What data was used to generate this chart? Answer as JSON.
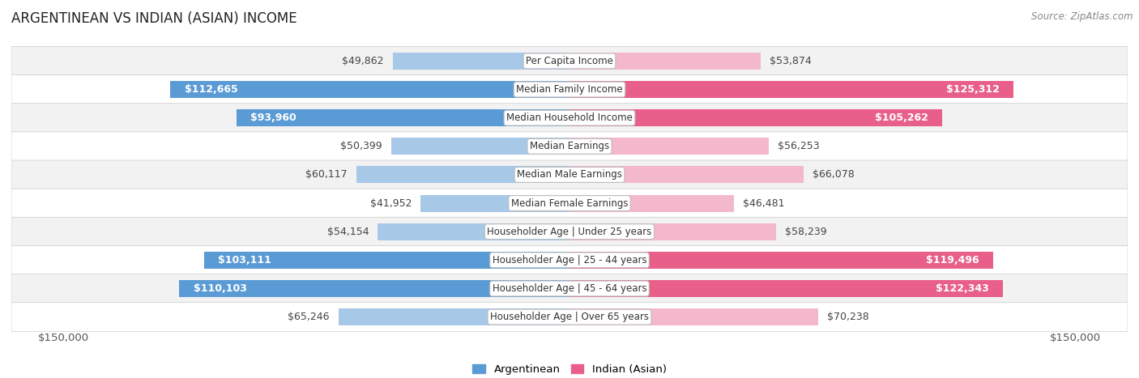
{
  "title": "ARGENTINEAN VS INDIAN (ASIAN) INCOME",
  "source": "Source: ZipAtlas.com",
  "categories": [
    "Per Capita Income",
    "Median Family Income",
    "Median Household Income",
    "Median Earnings",
    "Median Male Earnings",
    "Median Female Earnings",
    "Householder Age | Under 25 years",
    "Householder Age | 25 - 44 years",
    "Householder Age | 45 - 64 years",
    "Householder Age | Over 65 years"
  ],
  "argentinean_values": [
    49862,
    112665,
    93960,
    50399,
    60117,
    41952,
    54154,
    103111,
    110103,
    65246
  ],
  "indian_values": [
    53874,
    125312,
    105262,
    56253,
    66078,
    46481,
    58239,
    119496,
    122343,
    70238
  ],
  "argentinean_labels": [
    "$49,862",
    "$112,665",
    "$93,960",
    "$50,399",
    "$60,117",
    "$41,952",
    "$54,154",
    "$103,111",
    "$110,103",
    "$65,246"
  ],
  "indian_labels": [
    "$53,874",
    "$125,312",
    "$105,262",
    "$56,253",
    "$66,078",
    "$46,481",
    "$58,239",
    "$119,496",
    "$122,343",
    "$70,238"
  ],
  "x_max": 150000,
  "x_label_left": "$150,000",
  "x_label_right": "$150,000",
  "argentinean_color_light": "#a8c8e8",
  "argentinean_color_dark": "#5b9bd5",
  "indian_color_light": "#f4b8cc",
  "indian_color_dark": "#e8608a",
  "bar_height": 0.6,
  "label_fontsize": 9,
  "title_fontsize": 12,
  "category_fontsize": 8.5,
  "inside_label_threshold": 75000,
  "row_colors": [
    "#f2f2f2",
    "#ffffff"
  ]
}
